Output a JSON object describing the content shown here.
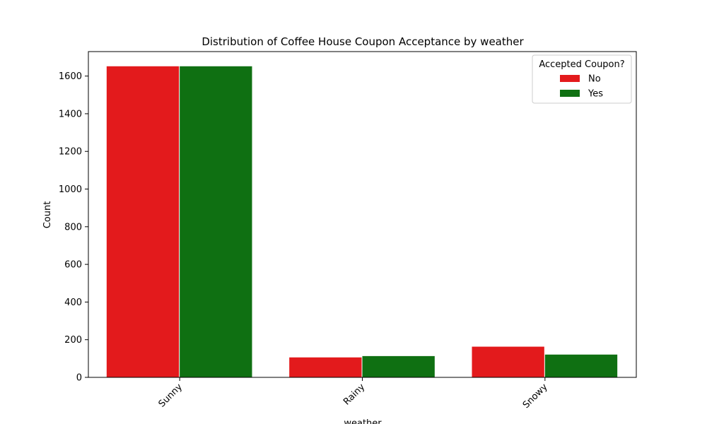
{
  "chart_data": {
    "type": "bar",
    "title": "Distribution of Coffee House Coupon Acceptance by weather",
    "xlabel": "weather",
    "ylabel": "Count",
    "categories": [
      "Sunny",
      "Rainy",
      "Snowy"
    ],
    "ylim": [
      0,
      1730
    ],
    "yticks": [
      0,
      200,
      400,
      600,
      800,
      1000,
      1200,
      1400,
      1600
    ],
    "grid": false,
    "legend": {
      "title": "Accepted Coupon?",
      "placement": "top-right"
    },
    "series": [
      {
        "name": "No",
        "color": "#e31a1c",
        "values": [
          1652,
          106,
          163
        ]
      },
      {
        "name": "Yes",
        "color": "#0f7012",
        "values": [
          1652,
          113,
          121
        ]
      }
    ]
  }
}
